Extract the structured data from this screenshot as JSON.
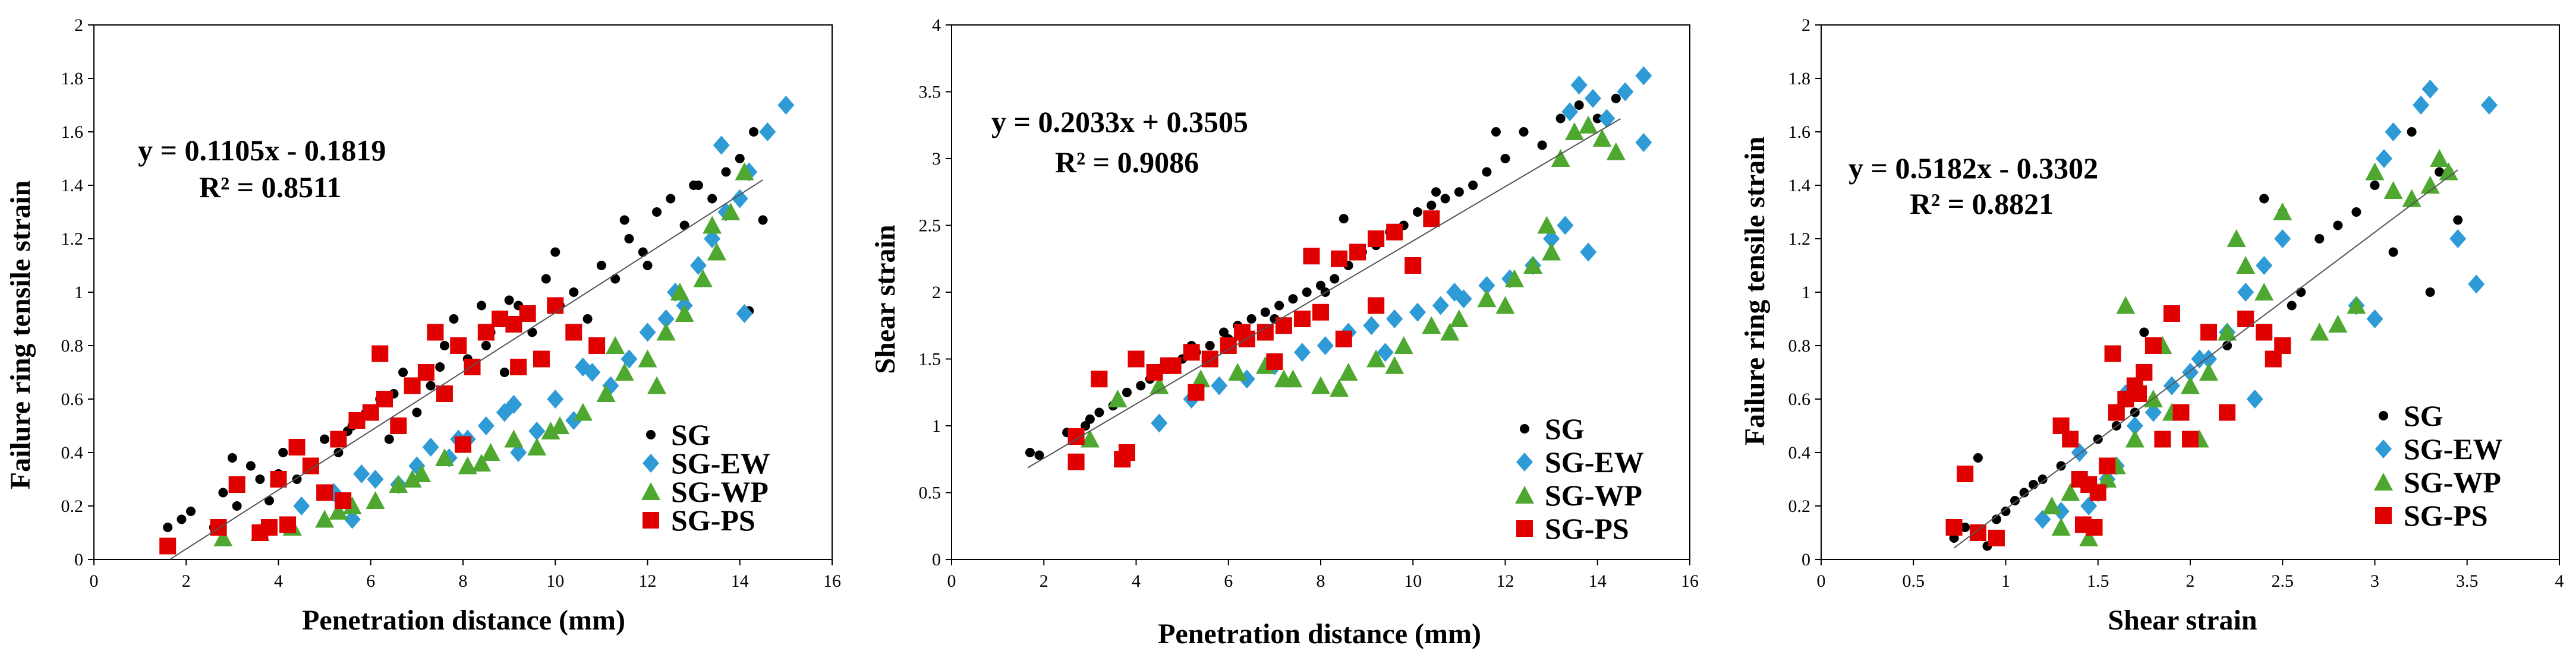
{
  "colors": {
    "SG": "#000000",
    "SG-EW": "#2E9BD6",
    "SG-WP": "#4EA72E",
    "SG-PS": "#E00000",
    "fit": "#555555",
    "axis": "#000000"
  },
  "chart_data": [
    {
      "type": "scatter",
      "title": "",
      "xlabel": "Penetration distance (mm)",
      "ylabel": "Failure ring tensile strain",
      "xlim": [
        0,
        16
      ],
      "ylim": [
        0,
        2
      ],
      "xticks": [
        "0",
        "2",
        "4",
        "6",
        "8",
        "10",
        "12",
        "14",
        "16"
      ],
      "yticks": [
        "0",
        "0.2",
        "0.4",
        "0.6",
        "0.8",
        "1",
        "1.2",
        "1.4",
        "1.6",
        "1.8",
        "2"
      ],
      "legend_position": "bottom-right",
      "fit": {
        "slope": 0.1105,
        "intercept": -0.1819,
        "x_range": [
          1.65,
          14.5
        ],
        "equation": "y = 0.1105x - 0.1819",
        "r2": "R² = 0.8511"
      },
      "series": [
        {
          "name": "SG",
          "marker": "circle",
          "x": [
            1.6,
            1.9,
            2.1,
            2.6,
            2.8,
            3.1,
            3.4,
            3.6,
            3.8,
            4.1,
            4.4,
            4.7,
            5.0,
            5.3,
            5.6,
            5.9,
            6.2,
            6.4,
            6.7,
            7.0,
            7.3,
            7.6,
            7.8,
            8.1,
            8.4,
            8.6,
            8.9,
            9.2,
            9.5,
            9.8,
            10.1,
            10.4,
            10.7,
            11.0,
            11.3,
            11.6,
            11.9,
            12.2,
            12.5,
            12.8,
            13.1,
            13.4,
            13.7,
            14.0,
            14.3,
            14.5,
            3.0,
            4.0,
            5.5,
            6.5,
            7.5,
            8.5,
            9.0,
            10.0,
            11.5,
            12.0,
            13.0,
            14.2
          ],
          "y": [
            0.12,
            0.15,
            0.18,
            0.12,
            0.25,
            0.2,
            0.35,
            0.3,
            0.22,
            0.4,
            0.3,
            0.35,
            0.45,
            0.4,
            0.5,
            0.55,
            0.6,
            0.45,
            0.7,
            0.55,
            0.65,
            0.8,
            0.9,
            0.75,
            0.95,
            0.85,
            0.7,
            0.95,
            0.85,
            1.05,
            0.95,
            1.0,
            0.9,
            1.1,
            1.05,
            1.2,
            1.15,
            1.3,
            1.35,
            1.25,
            1.4,
            1.35,
            1.45,
            1.5,
            1.6,
            1.27,
            0.38,
            0.32,
            0.48,
            0.62,
            0.72,
            0.8,
            0.97,
            1.15,
            1.27,
            1.1,
            1.4,
            0.93
          ]
        },
        {
          "name": "SG-EW",
          "marker": "diamond",
          "x": [
            4.5,
            5.2,
            5.6,
            6.1,
            6.6,
            7.0,
            7.3,
            7.7,
            8.1,
            8.5,
            8.9,
            9.2,
            9.6,
            10.0,
            10.4,
            10.8,
            11.2,
            11.6,
            12.0,
            12.4,
            12.8,
            13.1,
            13.4,
            13.7,
            14.0,
            14.2,
            14.6,
            15.0,
            5.8,
            7.9,
            9.1,
            10.6,
            12.6,
            13.6,
            14.1
          ],
          "y": [
            0.2,
            0.25,
            0.15,
            0.3,
            0.28,
            0.35,
            0.42,
            0.38,
            0.45,
            0.5,
            0.55,
            0.4,
            0.48,
            0.6,
            0.52,
            0.7,
            0.65,
            0.75,
            0.85,
            0.9,
            0.95,
            1.1,
            1.2,
            1.3,
            1.35,
            1.45,
            1.6,
            1.7,
            0.32,
            0.45,
            0.58,
            0.72,
            1.0,
            1.55,
            0.92
          ]
        },
        {
          "name": "SG-WP",
          "marker": "triangle",
          "x": [
            2.8,
            3.6,
            4.3,
            5.0,
            5.6,
            6.1,
            6.6,
            7.1,
            7.6,
            8.1,
            8.6,
            9.1,
            9.6,
            10.1,
            10.6,
            11.1,
            11.5,
            12.0,
            12.4,
            12.8,
            13.2,
            13.5,
            13.8,
            14.1,
            5.3,
            6.9,
            8.4,
            9.9,
            11.3,
            12.7,
            13.4,
            12.2
          ],
          "y": [
            0.08,
            0.1,
            0.12,
            0.15,
            0.2,
            0.22,
            0.28,
            0.32,
            0.38,
            0.35,
            0.4,
            0.45,
            0.42,
            0.5,
            0.55,
            0.62,
            0.7,
            0.75,
            0.85,
            0.92,
            1.05,
            1.15,
            1.3,
            1.45,
            0.18,
            0.3,
            0.36,
            0.48,
            0.8,
            1.0,
            1.25,
            0.65
          ]
        },
        {
          "name": "SG-PS",
          "marker": "square",
          "x": [
            1.6,
            2.7,
            3.1,
            3.6,
            4.0,
            4.4,
            4.7,
            5.0,
            5.3,
            5.7,
            6.0,
            6.3,
            6.6,
            6.9,
            7.2,
            7.6,
            7.9,
            8.2,
            8.5,
            8.8,
            9.1,
            9.4,
            9.7,
            10.0,
            10.4,
            10.9,
            4.2,
            5.4,
            6.2,
            7.4,
            8.0,
            9.2,
            3.8
          ],
          "y": [
            0.05,
            0.12,
            0.28,
            0.1,
            0.3,
            0.42,
            0.35,
            0.25,
            0.45,
            0.52,
            0.55,
            0.6,
            0.5,
            0.65,
            0.7,
            0.62,
            0.8,
            0.72,
            0.85,
            0.9,
            0.88,
            0.92,
            0.75,
            0.95,
            0.85,
            0.8,
            0.13,
            0.22,
            0.77,
            0.85,
            0.43,
            0.72,
            0.12
          ]
        }
      ]
    },
    {
      "type": "scatter",
      "title": "",
      "xlabel": "Penetration distance (mm)",
      "ylabel": "Shear strain",
      "xlim": [
        0,
        16
      ],
      "ylim": [
        0,
        4
      ],
      "xticks": [
        "0",
        "2",
        "4",
        "6",
        "8",
        "10",
        "12",
        "14",
        "16"
      ],
      "yticks": [
        "0",
        "0.5",
        "1",
        "1.5",
        "2",
        "2.5",
        "3",
        "3.5",
        "4"
      ],
      "legend_position": "bottom-right",
      "fit": {
        "slope": 0.2033,
        "intercept": 0.3505,
        "x_range": [
          1.65,
          14.5
        ],
        "equation": "y = 0.2033x + 0.3505",
        "r2": "R² = 0.9086"
      },
      "series": [
        {
          "name": "SG",
          "marker": "circle",
          "x": [
            1.7,
            1.9,
            2.5,
            2.9,
            3.2,
            3.5,
            3.8,
            4.1,
            4.4,
            4.7,
            5.0,
            5.3,
            5.6,
            5.9,
            6.2,
            6.5,
            6.8,
            7.1,
            7.4,
            7.7,
            8.0,
            8.3,
            8.6,
            8.9,
            9.2,
            9.5,
            9.8,
            10.1,
            10.4,
            10.7,
            11.0,
            11.3,
            11.6,
            12.0,
            12.4,
            12.8,
            13.2,
            13.6,
            14.0,
            14.4,
            3.0,
            4.3,
            5.2,
            6.0,
            7.0,
            8.1,
            8.5,
            10.5,
            11.8
          ],
          "y": [
            0.8,
            0.78,
            0.95,
            1.0,
            1.1,
            1.15,
            1.25,
            1.3,
            1.4,
            1.45,
            1.5,
            1.55,
            1.6,
            1.7,
            1.75,
            1.8,
            1.85,
            1.9,
            1.95,
            2.0,
            2.05,
            2.1,
            2.2,
            2.3,
            2.35,
            2.45,
            2.5,
            2.6,
            2.65,
            2.7,
            2.75,
            2.8,
            2.9,
            3.0,
            3.2,
            3.1,
            3.3,
            3.4,
            3.3,
            3.45,
            1.05,
            1.35,
            1.6,
            1.65,
            1.8,
            2.0,
            2.55,
            2.75,
            3.2
          ]
        },
        {
          "name": "SG-EW",
          "marker": "diamond",
          "x": [
            4.5,
            5.2,
            5.8,
            6.4,
            7.0,
            7.6,
            8.1,
            8.6,
            9.1,
            9.6,
            10.1,
            10.6,
            11.1,
            11.6,
            12.1,
            12.6,
            13.0,
            13.3,
            13.6,
            13.9,
            14.2,
            14.6,
            15.0,
            15.0,
            13.4,
            13.8,
            9.4,
            10.9
          ],
          "y": [
            1.02,
            1.2,
            1.3,
            1.35,
            1.45,
            1.55,
            1.6,
            1.7,
            1.75,
            1.8,
            1.85,
            1.9,
            1.95,
            2.05,
            2.1,
            2.2,
            2.4,
            2.5,
            3.55,
            3.45,
            3.3,
            3.5,
            3.62,
            3.12,
            3.35,
            2.3,
            1.55,
            2.0
          ]
        },
        {
          "name": "SG-WP",
          "marker": "triangle",
          "x": [
            3.0,
            3.6,
            4.5,
            5.4,
            6.2,
            6.8,
            7.4,
            8.0,
            8.6,
            9.2,
            9.8,
            10.4,
            11.0,
            11.6,
            12.2,
            12.6,
            12.9,
            13.2,
            13.5,
            13.8,
            14.1,
            14.4,
            7.2,
            8.4,
            9.6,
            10.8,
            12.0,
            13.0
          ],
          "y": [
            0.9,
            1.2,
            1.3,
            1.35,
            1.4,
            1.45,
            1.35,
            1.3,
            1.4,
            1.5,
            1.6,
            1.75,
            1.8,
            1.95,
            2.1,
            2.2,
            2.5,
            3.0,
            3.2,
            3.25,
            3.15,
            3.05,
            1.35,
            1.28,
            1.45,
            1.7,
            1.9,
            2.3
          ]
        },
        {
          "name": "SG-PS",
          "marker": "square",
          "x": [
            2.7,
            3.2,
            3.7,
            4.0,
            4.4,
            4.8,
            5.2,
            5.6,
            6.0,
            6.4,
            6.8,
            7.2,
            7.6,
            8.0,
            8.4,
            8.8,
            9.2,
            9.6,
            10.0,
            10.4,
            3.8,
            4.7,
            5.3,
            6.3,
            7.0,
            7.8,
            8.5,
            9.2,
            2.7
          ],
          "y": [
            0.92,
            1.35,
            0.75,
            1.5,
            1.4,
            1.45,
            1.55,
            1.5,
            1.6,
            1.65,
            1.7,
            1.75,
            1.8,
            1.85,
            2.25,
            2.3,
            2.4,
            2.45,
            2.2,
            2.55,
            0.8,
            1.45,
            1.25,
            1.7,
            1.48,
            2.27,
            1.65,
            1.9,
            0.73
          ]
        }
      ]
    },
    {
      "type": "scatter",
      "title": "",
      "xlabel": "Shear strain",
      "ylabel": "Failure ring tensile strain",
      "xlim": [
        0,
        4
      ],
      "ylim": [
        0,
        2
      ],
      "xticks": [
        "0",
        "0.5",
        "1",
        "1.5",
        "2",
        "2.5",
        "3",
        "3.5",
        "4"
      ],
      "yticks": [
        "0",
        "0.2",
        "0.4",
        "0.6",
        "0.8",
        "1",
        "1.2",
        "1.4",
        "1.6",
        "1.8",
        "2"
      ],
      "legend_position": "bottom-right",
      "fit": {
        "slope": 0.5182,
        "intercept": -0.3302,
        "x_range": [
          0.72,
          3.45
        ],
        "equation": "y = 0.5182x - 0.3302",
        "r2": "R² = 0.8821"
      },
      "series": [
        {
          "name": "SG",
          "marker": "circle",
          "x": [
            0.72,
            0.78,
            0.85,
            0.9,
            0.95,
            1.0,
            1.05,
            1.1,
            1.15,
            1.2,
            1.3,
            1.4,
            1.5,
            1.6,
            1.7,
            1.8,
            1.9,
            2.0,
            2.1,
            2.2,
            2.3,
            2.4,
            2.5,
            2.6,
            2.7,
            2.8,
            2.9,
            3.0,
            3.1,
            3.2,
            3.3,
            3.4,
            3.45,
            3.35,
            2.55,
            1.75
          ],
          "y": [
            0.08,
            0.12,
            0.38,
            0.05,
            0.15,
            0.18,
            0.22,
            0.25,
            0.28,
            0.3,
            0.35,
            0.4,
            0.45,
            0.5,
            0.55,
            0.6,
            0.65,
            0.7,
            0.75,
            0.8,
            0.9,
            1.35,
            1.3,
            1.0,
            1.2,
            1.25,
            1.3,
            1.4,
            1.15,
            1.6,
            1.0,
            1.45,
            1.27,
            1.45,
            0.95,
            0.85
          ]
        },
        {
          "name": "SG-EW",
          "marker": "diamond",
          "x": [
            1.2,
            1.3,
            1.45,
            1.5,
            1.55,
            1.6,
            1.7,
            1.8,
            1.9,
            2.0,
            2.1,
            2.2,
            2.3,
            2.4,
            2.5,
            2.9,
            3.0,
            3.05,
            3.1,
            3.25,
            3.3,
            3.45,
            3.55,
            3.62,
            1.4,
            1.65,
            2.05,
            2.35
          ],
          "y": [
            0.15,
            0.18,
            0.2,
            0.25,
            0.3,
            0.35,
            0.5,
            0.55,
            0.65,
            0.7,
            0.75,
            0.85,
            1.0,
            1.1,
            1.2,
            0.95,
            0.9,
            1.5,
            1.6,
            1.7,
            1.76,
            1.2,
            1.03,
            1.7,
            0.4,
            0.62,
            0.75,
            0.6
          ]
        },
        {
          "name": "SG-WP",
          "marker": "triangle",
          "x": [
            1.25,
            1.3,
            1.35,
            1.45,
            1.55,
            1.6,
            1.7,
            1.8,
            1.9,
            2.0,
            2.1,
            2.2,
            2.3,
            2.4,
            2.5,
            2.7,
            2.8,
            2.9,
            3.0,
            3.1,
            3.2,
            3.3,
            3.35,
            3.4,
            1.65,
            1.85,
            2.05,
            2.25
          ],
          "y": [
            0.2,
            0.12,
            0.25,
            0.08,
            0.3,
            0.35,
            0.45,
            0.6,
            0.55,
            0.65,
            0.7,
            0.85,
            1.1,
            1.0,
            1.3,
            0.85,
            0.88,
            0.95,
            1.45,
            1.38,
            1.35,
            1.4,
            1.5,
            1.45,
            0.95,
            0.8,
            0.45,
            1.2
          ]
        },
        {
          "name": "SG-PS",
          "marker": "square",
          "x": [
            0.72,
            0.78,
            0.85,
            0.95,
            1.3,
            1.35,
            1.4,
            1.45,
            1.5,
            1.55,
            1.6,
            1.65,
            1.7,
            1.75,
            1.8,
            1.85,
            1.9,
            1.95,
            2.0,
            2.1,
            2.2,
            2.3,
            2.4,
            2.45,
            2.5,
            1.42,
            1.48,
            1.58,
            1.72
          ],
          "y": [
            0.12,
            0.32,
            0.1,
            0.08,
            0.5,
            0.45,
            0.3,
            0.28,
            0.25,
            0.35,
            0.55,
            0.6,
            0.65,
            0.7,
            0.8,
            0.45,
            0.92,
            0.55,
            0.45,
            0.85,
            0.55,
            0.9,
            0.85,
            0.75,
            0.8,
            0.13,
            0.12,
            0.77,
            0.62
          ]
        }
      ]
    }
  ]
}
